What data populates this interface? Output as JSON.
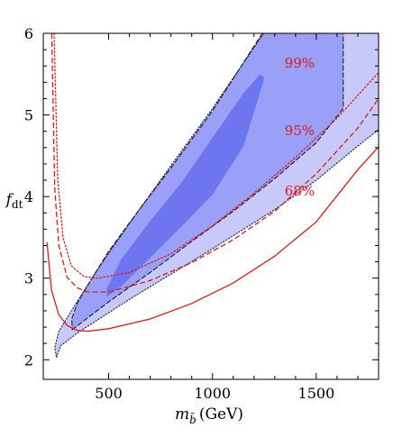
{
  "chart_data": {
    "type": "contour",
    "title": "",
    "xlabel": {
      "base": "m",
      "sub": "b̃",
      "unit": "(GeV)"
    },
    "ylabel": {
      "base": "f",
      "sub": "dt"
    },
    "xlim": [
      185,
      1800
    ],
    "ylim": [
      1.76,
      6.0
    ],
    "x_ticks": [
      500,
      1000,
      1500
    ],
    "y_ticks": [
      2,
      3,
      4,
      5,
      6
    ],
    "colors": {
      "band_outer": "#c7c9fb",
      "band_middle": "#9aa0f7",
      "band_inner": "#6d76ee",
      "contour_line": "#1a1a2e",
      "curve": "#e01818"
    },
    "bands": [
      {
        "name": "outer",
        "polygon": [
          [
            249,
            2.03
          ],
          [
            268,
            2.17
          ],
          [
            350,
            2.33
          ],
          [
            600,
            2.74
          ],
          [
            1000,
            3.36
          ],
          [
            1300,
            3.84
          ],
          [
            1500,
            4.2
          ],
          [
            1700,
            4.62
          ],
          [
            1800,
            4.82
          ],
          [
            1800,
            6.0
          ],
          [
            1247,
            6.0
          ],
          [
            1000,
            5.08
          ],
          [
            800,
            4.38
          ],
          [
            600,
            3.67
          ],
          [
            450,
            3.12
          ],
          [
            350,
            2.72
          ],
          [
            260,
            2.35
          ],
          [
            240,
            2.15
          ]
        ]
      },
      {
        "name": "middle",
        "polygon": [
          [
            325,
            2.37
          ],
          [
            500,
            2.71
          ],
          [
            700,
            3.07
          ],
          [
            900,
            3.45
          ],
          [
            1100,
            3.82
          ],
          [
            1300,
            4.22
          ],
          [
            1500,
            4.66
          ],
          [
            1630,
            5.08
          ],
          [
            1630,
            6.0
          ],
          [
            1240,
            6.0
          ],
          [
            1000,
            5.05
          ],
          [
            800,
            4.35
          ],
          [
            650,
            3.85
          ],
          [
            500,
            3.33
          ],
          [
            420,
            3.0
          ],
          [
            350,
            2.7
          ],
          [
            322,
            2.5
          ]
        ]
      },
      {
        "name": "inner",
        "polygon": [
          [
            490,
            2.77
          ],
          [
            560,
            2.9
          ],
          [
            700,
            3.25
          ],
          [
            850,
            3.63
          ],
          [
            1000,
            4.02
          ],
          [
            1150,
            4.62
          ],
          [
            1250,
            5.45
          ],
          [
            1230,
            5.5
          ],
          [
            1150,
            5.27
          ],
          [
            1000,
            4.72
          ],
          [
            850,
            4.17
          ],
          [
            700,
            3.7
          ],
          [
            560,
            3.23
          ],
          [
            490,
            2.87
          ]
        ]
      }
    ],
    "contours": [
      {
        "style": "dashed",
        "points": [
          [
            325,
            2.37
          ],
          [
            500,
            2.71
          ],
          [
            700,
            3.07
          ],
          [
            900,
            3.45
          ],
          [
            1100,
            3.82
          ],
          [
            1300,
            4.22
          ],
          [
            1500,
            4.66
          ],
          [
            1630,
            5.08
          ],
          [
            1630,
            6.0
          ]
        ]
      },
      {
        "style": "dashed",
        "points": [
          [
            1240,
            6.0
          ],
          [
            1000,
            5.05
          ],
          [
            800,
            4.35
          ],
          [
            650,
            3.85
          ],
          [
            500,
            3.33
          ],
          [
            420,
            3.0
          ],
          [
            350,
            2.7
          ],
          [
            322,
            2.5
          ],
          [
            325,
            2.37
          ]
        ]
      },
      {
        "style": "dotted",
        "points": [
          [
            249,
            2.03
          ],
          [
            268,
            2.17
          ],
          [
            350,
            2.33
          ],
          [
            600,
            2.74
          ],
          [
            1000,
            3.36
          ],
          [
            1300,
            3.84
          ],
          [
            1500,
            4.2
          ],
          [
            1700,
            4.62
          ],
          [
            1800,
            4.82
          ]
        ]
      },
      {
        "style": "dotted",
        "points": [
          [
            1247,
            6.0
          ],
          [
            1000,
            5.08
          ],
          [
            800,
            4.38
          ],
          [
            600,
            3.67
          ],
          [
            450,
            3.12
          ],
          [
            350,
            2.72
          ],
          [
            260,
            2.35
          ],
          [
            240,
            2.15
          ],
          [
            249,
            2.03
          ]
        ]
      }
    ],
    "series": [
      {
        "label": "68%",
        "style": "solid",
        "label_at": [
          1420,
          4.01
        ],
        "points": [
          [
            203,
            3.44
          ],
          [
            225,
            2.85
          ],
          [
            260,
            2.55
          ],
          [
            300,
            2.42
          ],
          [
            350,
            2.36
          ],
          [
            400,
            2.35
          ],
          [
            500,
            2.38
          ],
          [
            700,
            2.5
          ],
          [
            900,
            2.69
          ],
          [
            1100,
            2.94
          ],
          [
            1300,
            3.27
          ],
          [
            1500,
            3.69
          ],
          [
            1700,
            4.33
          ],
          [
            1800,
            4.61
          ]
        ]
      },
      {
        "label": "95%",
        "style": "dashed",
        "label_at": [
          1420,
          4.75
        ],
        "points": [
          [
            226,
            6.0
          ],
          [
            240,
            4.1
          ],
          [
            260,
            3.4
          ],
          [
            300,
            3.01
          ],
          [
            350,
            2.88
          ],
          [
            400,
            2.83
          ],
          [
            500,
            2.83
          ],
          [
            700,
            2.97
          ],
          [
            900,
            3.19
          ],
          [
            1100,
            3.47
          ],
          [
            1300,
            3.82
          ],
          [
            1500,
            4.28
          ],
          [
            1700,
            4.84
          ],
          [
            1800,
            5.2
          ]
        ]
      },
      {
        "label": "99%",
        "style": "dotted",
        "label_at": [
          1420,
          5.58
        ],
        "points": [
          [
            237,
            6.0
          ],
          [
            255,
            4.2
          ],
          [
            280,
            3.5
          ],
          [
            320,
            3.15
          ],
          [
            380,
            3.02
          ],
          [
            450,
            3.0
          ],
          [
            600,
            3.07
          ],
          [
            800,
            3.3
          ],
          [
            1000,
            3.64
          ],
          [
            1200,
            4.04
          ],
          [
            1400,
            4.48
          ],
          [
            1600,
            4.96
          ],
          [
            1800,
            5.52
          ]
        ]
      }
    ]
  }
}
